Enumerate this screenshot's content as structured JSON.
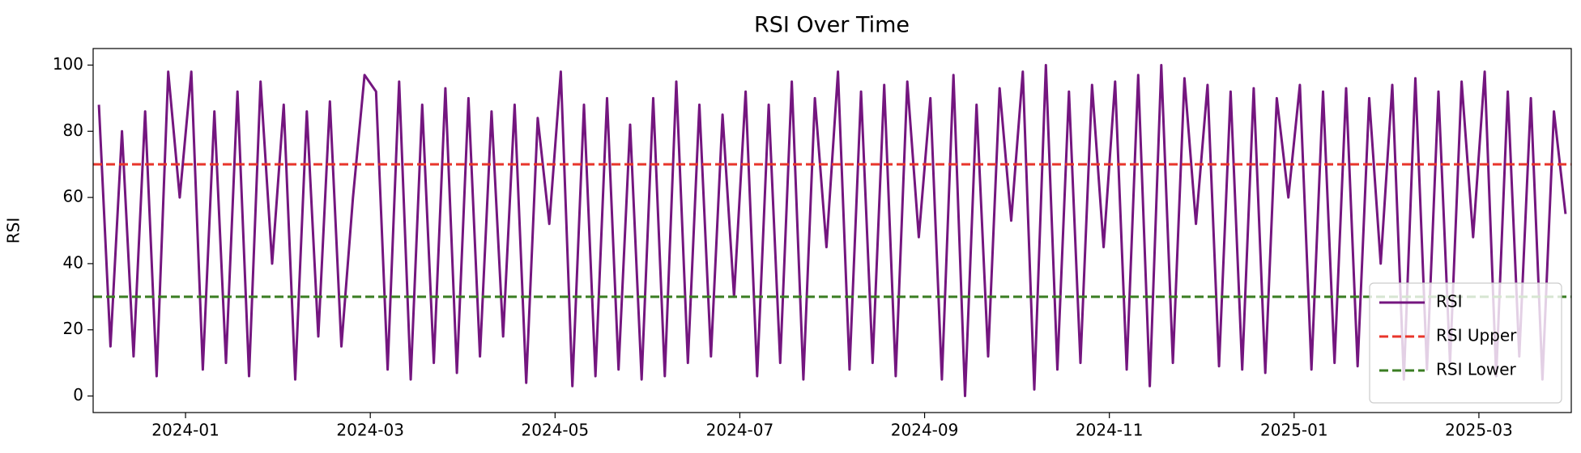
{
  "chart_data": {
    "type": "line",
    "title": "RSI Over Time",
    "ylabel": "RSI",
    "xlim": [
      "2023-12",
      "2025-04"
    ],
    "xticks": [
      "2024-01",
      "2024-03",
      "2024-05",
      "2024-07",
      "2024-09",
      "2024-11",
      "2025-01",
      "2025-03"
    ],
    "ylim": [
      -5,
      105
    ],
    "yticks": [
      0,
      20,
      40,
      60,
      80,
      100
    ],
    "legend": "lower right",
    "series": [
      {
        "name": "RSI",
        "color": "#74167f",
        "x": [
          "2023-12",
          "2023-12",
          "2023-12",
          "2023-12",
          "2023-12",
          "2023-12",
          "2023-12",
          "2023-12",
          "2024-01",
          "2024-01",
          "2024-01",
          "2024-01",
          "2024-01",
          "2024-01",
          "2024-01",
          "2024-01",
          "2024-02",
          "2024-02",
          "2024-02",
          "2024-02",
          "2024-02",
          "2024-02",
          "2024-02",
          "2024-02",
          "2024-03",
          "2024-03",
          "2024-03",
          "2024-03",
          "2024-03",
          "2024-03",
          "2024-03",
          "2024-03",
          "2024-04",
          "2024-04",
          "2024-04",
          "2024-04",
          "2024-04",
          "2024-04",
          "2024-04",
          "2024-04",
          "2024-05",
          "2024-05",
          "2024-05",
          "2024-05",
          "2024-05",
          "2024-05",
          "2024-05",
          "2024-05",
          "2024-06",
          "2024-06",
          "2024-06",
          "2024-06",
          "2024-06",
          "2024-06",
          "2024-06",
          "2024-06",
          "2024-07",
          "2024-07",
          "2024-07",
          "2024-07",
          "2024-07",
          "2024-07",
          "2024-07",
          "2024-07",
          "2024-08",
          "2024-08",
          "2024-08",
          "2024-08",
          "2024-08",
          "2024-08",
          "2024-08",
          "2024-08",
          "2024-09",
          "2024-09",
          "2024-09",
          "2024-09",
          "2024-09",
          "2024-09",
          "2024-09",
          "2024-09",
          "2024-10",
          "2024-10",
          "2024-10",
          "2024-10",
          "2024-10",
          "2024-10",
          "2024-10",
          "2024-10",
          "2024-11",
          "2024-11",
          "2024-11",
          "2024-11",
          "2024-11",
          "2024-11",
          "2024-11",
          "2024-11",
          "2024-12",
          "2024-12",
          "2024-12",
          "2024-12",
          "2024-12",
          "2024-12",
          "2024-12",
          "2024-12",
          "2025-01",
          "2025-01",
          "2025-01",
          "2025-01",
          "2025-01",
          "2025-01",
          "2025-01",
          "2025-01",
          "2025-02",
          "2025-02",
          "2025-02",
          "2025-02",
          "2025-02",
          "2025-02",
          "2025-02",
          "2025-02",
          "2025-03",
          "2025-03",
          "2025-03",
          "2025-03",
          "2025-03",
          "2025-03",
          "2025-03",
          "2025-03"
        ],
        "values": [
          88,
          15,
          80,
          12,
          86,
          6,
          98,
          60,
          98,
          8,
          86,
          10,
          92,
          6,
          95,
          40,
          88,
          5,
          86,
          18,
          89,
          15,
          60,
          97,
          92,
          8,
          95,
          5,
          88,
          10,
          93,
          7,
          90,
          12,
          86,
          18,
          88,
          4,
          84,
          52,
          98,
          3,
          88,
          6,
          90,
          8,
          82,
          5,
          90,
          6,
          95,
          10,
          88,
          12,
          85,
          30,
          92,
          6,
          88,
          10,
          95,
          5,
          90,
          45,
          98,
          8,
          92,
          10,
          94,
          6,
          95,
          48,
          90,
          5,
          97,
          0,
          88,
          12,
          93,
          53,
          98,
          2,
          100,
          8,
          92,
          10,
          94,
          45,
          95,
          8,
          97,
          3,
          100,
          10,
          96,
          52,
          94,
          9,
          92,
          8,
          93,
          7,
          90,
          60,
          94,
          8,
          92,
          10,
          93,
          9,
          90,
          40,
          94,
          5,
          96,
          8,
          92,
          10,
          95,
          48,
          98,
          6,
          92,
          12,
          90,
          5,
          86,
          55
        ]
      }
    ],
    "hlines": [
      {
        "name": "RSI Upper",
        "value": 70,
        "color": "#e8362b"
      },
      {
        "name": "RSI Lower",
        "value": 30,
        "color": "#3a7d22"
      }
    ]
  }
}
